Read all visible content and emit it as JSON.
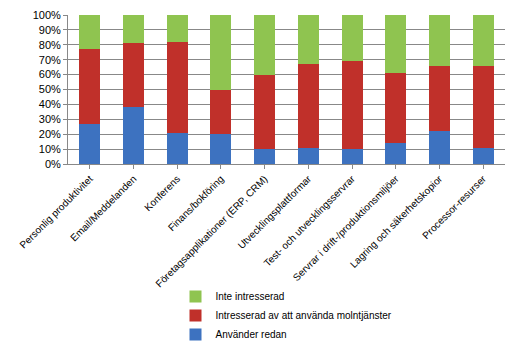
{
  "chart_data": {
    "type": "bar",
    "stacked": true,
    "grid": true,
    "legend": "bottom",
    "categories": [
      "Personlig produktivitet",
      "Email/Meddelanden",
      "Konferens",
      "Finans/bokföring",
      "Företagsapplikationer (ERP, CRM)",
      "Utvecklingsplattformar",
      "Test- och utvecklingsservrar",
      "Servrar i drift-/produktionsmiljöer",
      "Lagring och säkerhetskopior",
      "Processor-resurser"
    ],
    "series": [
      {
        "name": "Använder redan",
        "color": "#3d72c0",
        "values": [
          27,
          38,
          21,
          20,
          10,
          11,
          10,
          14,
          22,
          11
        ]
      },
      {
        "name": "Intresserad av att använda molntjänster",
        "color": "#c0302a",
        "values": [
          50,
          43,
          61,
          30,
          50,
          56,
          59,
          47,
          44,
          55
        ]
      },
      {
        "name": "Inte intresserad",
        "color": "#8fc450",
        "values": [
          23,
          19,
          18,
          50,
          40,
          33,
          31,
          39,
          34,
          34
        ]
      }
    ],
    "ylim": [
      0,
      100
    ],
    "yticks": [
      {
        "value": 0,
        "label": "0%"
      },
      {
        "value": 10,
        "label": "10%"
      },
      {
        "value": 20,
        "label": "20%"
      },
      {
        "value": 30,
        "label": "30%"
      },
      {
        "value": 40,
        "label": "40%"
      },
      {
        "value": 50,
        "label": "50%"
      },
      {
        "value": 60,
        "label": "60%"
      },
      {
        "value": 70,
        "label": "70%"
      },
      {
        "value": 80,
        "label": "80%"
      },
      {
        "value": 90,
        "label": "90%"
      },
      {
        "value": 100,
        "label": "100%"
      }
    ]
  }
}
